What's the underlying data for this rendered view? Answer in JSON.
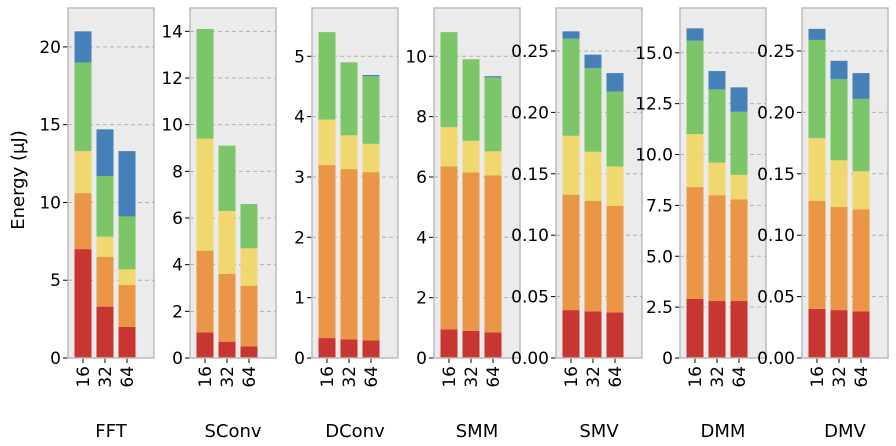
{
  "chart_data": {
    "type": "bar",
    "stacked": true,
    "ylabel": "Energy (μJ)",
    "categories": [
      "16",
      "32",
      "64"
    ],
    "segment_colors": [
      "#c93530",
      "#ea9647",
      "#f0d76e",
      "#7dc569",
      "#4680b8"
    ],
    "panels": [
      {
        "name": "FFT",
        "ylim": [
          0,
          22.5
        ],
        "yticks": [
          0,
          5,
          10,
          15,
          20
        ],
        "ytick_labels": [
          "0",
          "5",
          "10",
          "15",
          "20"
        ],
        "segments": [
          [
            7.0,
            3.6,
            2.7,
            5.7,
            2.0
          ],
          [
            3.3,
            3.2,
            1.3,
            3.9,
            3.0
          ],
          [
            2.0,
            2.7,
            1.0,
            3.4,
            4.2
          ]
        ]
      },
      {
        "name": "SConv",
        "ylim": [
          0,
          15.0
        ],
        "yticks": [
          0,
          2,
          4,
          6,
          8,
          10,
          12,
          14
        ],
        "ytick_labels": [
          "0",
          "2",
          "4",
          "6",
          "8",
          "10",
          "12",
          "14"
        ],
        "segments": [
          [
            1.1,
            3.5,
            4.8,
            4.7,
            0.0
          ],
          [
            0.7,
            2.9,
            2.7,
            2.8,
            0.0
          ],
          [
            0.5,
            2.6,
            1.6,
            1.9,
            0.0
          ]
        ]
      },
      {
        "name": "DConv",
        "ylim": [
          0,
          5.8
        ],
        "yticks": [
          0,
          1,
          2,
          3,
          4,
          5
        ],
        "ytick_labels": [
          "0",
          "1",
          "2",
          "3",
          "4",
          "5"
        ],
        "segments": [
          [
            0.33,
            2.87,
            0.75,
            1.45,
            0.0
          ],
          [
            0.31,
            2.82,
            0.56,
            1.21,
            0.0
          ],
          [
            0.29,
            2.79,
            0.47,
            1.12,
            0.02
          ]
        ]
      },
      {
        "name": "SMM",
        "ylim": [
          0,
          11.6
        ],
        "yticks": [
          0,
          2,
          4,
          6,
          8,
          10
        ],
        "ytick_labels": [
          "0",
          "2",
          "4",
          "6",
          "8",
          "10"
        ],
        "segments": [
          [
            0.95,
            5.4,
            1.3,
            3.15,
            0.0
          ],
          [
            0.9,
            5.25,
            1.05,
            2.7,
            0.0
          ],
          [
            0.85,
            5.2,
            0.8,
            2.45,
            0.04
          ]
        ]
      },
      {
        "name": "SMV",
        "ylim": [
          0,
          0.285
        ],
        "yticks": [
          0,
          0.05,
          0.1,
          0.15,
          0.2,
          0.25
        ],
        "ytick_labels": [
          "0.00",
          "0.05",
          "0.10",
          "0.15",
          "0.20",
          "0.25"
        ],
        "segments": [
          [
            0.039,
            0.094,
            0.048,
            0.079,
            0.006
          ],
          [
            0.038,
            0.09,
            0.04,
            0.068,
            0.011
          ],
          [
            0.037,
            0.087,
            0.032,
            0.061,
            0.015
          ]
        ]
      },
      {
        "name": "DMM",
        "ylim": [
          0,
          17.2
        ],
        "yticks": [
          0,
          2.5,
          5.0,
          7.5,
          10.0,
          12.5,
          15.0
        ],
        "ytick_labels": [
          "0",
          "2.5",
          "5.0",
          "7.5",
          "10.0",
          "12.5",
          "15.0"
        ],
        "segments": [
          [
            2.9,
            5.5,
            2.6,
            4.6,
            0.6
          ],
          [
            2.8,
            5.2,
            1.6,
            3.6,
            0.9
          ],
          [
            2.8,
            5.0,
            1.2,
            3.1,
            1.2
          ]
        ]
      },
      {
        "name": "DMV",
        "ylim": [
          0,
          0.285
        ],
        "yticks": [
          0,
          0.05,
          0.1,
          0.15,
          0.2,
          0.25
        ],
        "ytick_labels": [
          "0.00",
          "0.05",
          "0.10",
          "0.15",
          "0.20",
          "0.25"
        ],
        "segments": [
          [
            0.04,
            0.088,
            0.051,
            0.08,
            0.009
          ],
          [
            0.039,
            0.084,
            0.038,
            0.066,
            0.015
          ],
          [
            0.038,
            0.083,
            0.031,
            0.059,
            0.021
          ]
        ]
      }
    ]
  }
}
